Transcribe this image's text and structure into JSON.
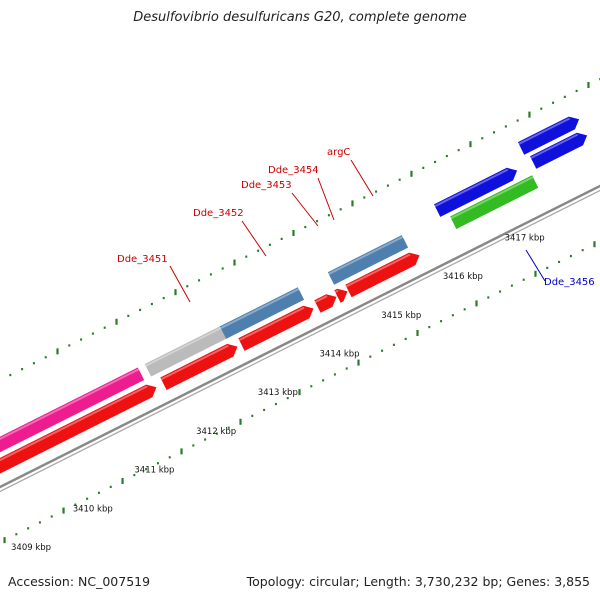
{
  "title": "Desulfovibrio desulfuricans G20, complete genome",
  "accession_text": "Accession: NC_007519",
  "topology_text": "Topology: circular; Length: 3,730,232 bp; Genes: 3,855",
  "colors": {
    "backbone": "#888888",
    "tick": "#2a7a2a",
    "cds": "#ee1111",
    "gene": "#4f7fae",
    "pseudo": "#bbbbbb",
    "pink": "#ee1d8f",
    "blue": "#1010dd",
    "green": "#33bb22",
    "label_red": "#cc0000",
    "label_blue": "#0000cc"
  },
  "axis_labels": [
    "3409 kbp",
    "3410 kbp",
    "3411 kbp",
    "3412 kbp",
    "3413 kbp",
    "3414 kbp",
    "3415 kbp",
    "3416 kbp",
    "3417 kbp"
  ],
  "gene_labels": [
    {
      "text": "Dde_3451",
      "color": "label_red"
    },
    {
      "text": "Dde_3452",
      "color": "label_red"
    },
    {
      "text": "Dde_3453",
      "color": "label_red"
    },
    {
      "text": "Dde_3454",
      "color": "label_red"
    },
    {
      "text": "argC",
      "color": "label_red"
    },
    {
      "text": "Dde_3456",
      "color": "label_blue"
    }
  ]
}
